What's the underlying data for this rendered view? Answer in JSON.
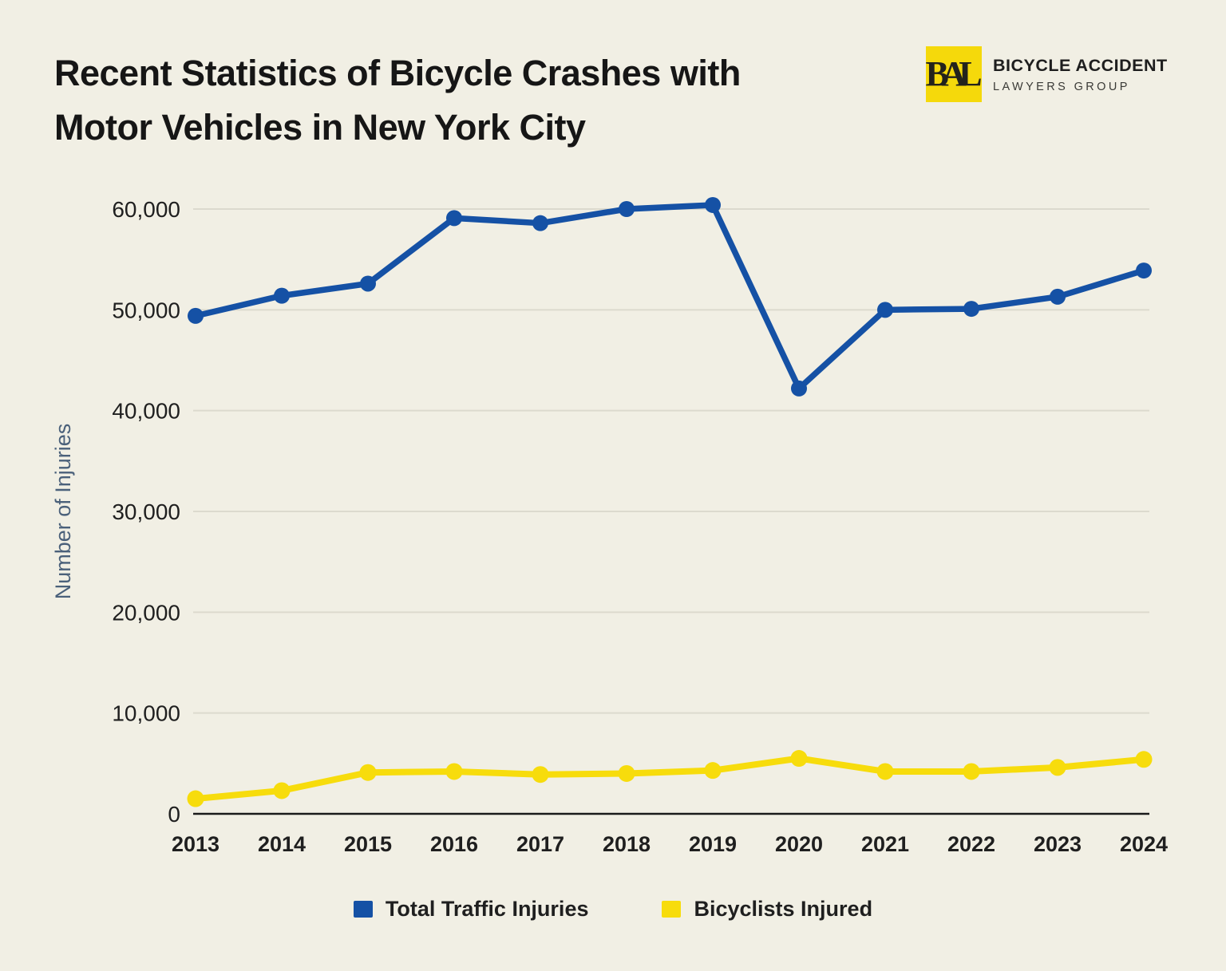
{
  "page": {
    "background_color": "#F1EFE4"
  },
  "header": {
    "title_lines": [
      "Recent Statistics of Bicycle Crashes with",
      "Motor Vehicles in New York City"
    ],
    "logo": {
      "monogram": "BAL",
      "company_line1": "BICYCLE ACCIDENT",
      "company_line2": "LAWYERS GROUP"
    }
  },
  "chart_data": {
    "type": "line",
    "title": "Recent Statistics of Bicycle Crashes with Motor Vehicles in New York City",
    "xlabel": "",
    "ylabel": "Number of Injuries",
    "categories": [
      "2013",
      "2014",
      "2015",
      "2016",
      "2017",
      "2018",
      "2019",
      "2020",
      "2021",
      "2022",
      "2023",
      "2024"
    ],
    "series": [
      {
        "name": "Total Traffic Injuries",
        "color": "#1551A5",
        "values": [
          49400,
          51400,
          52600,
          59100,
          58600,
          60000,
          60400,
          42200,
          50000,
          50100,
          51300,
          53900
        ]
      },
      {
        "name": "Bicyclists Injured",
        "color": "#F7DC0C",
        "values": [
          1500,
          2300,
          4100,
          4200,
          3900,
          4000,
          4300,
          5500,
          4200,
          4200,
          4600,
          5400
        ]
      }
    ],
    "ylim": [
      0,
      62000
    ],
    "yticks": [
      0,
      10000,
      20000,
      30000,
      40000,
      50000,
      60000
    ],
    "ytick_labels": [
      "0",
      "10,000",
      "20,000",
      "30,000",
      "40,000",
      "50,000",
      "60,000"
    ],
    "grid": true,
    "legend_position": "bottom"
  },
  "colors": {
    "background": "#F1EFE4",
    "gridline": "#DCDACE",
    "axis_line": "#1A1A1A",
    "tick_label": "#1F1F1F",
    "axis_title": "#4A607A",
    "title_text": "#161616",
    "legend_text": "#1F1F1F",
    "logo_square": "#F5D90B",
    "series_blue": "#1551A5",
    "series_yellow": "#F7DC0C"
  }
}
